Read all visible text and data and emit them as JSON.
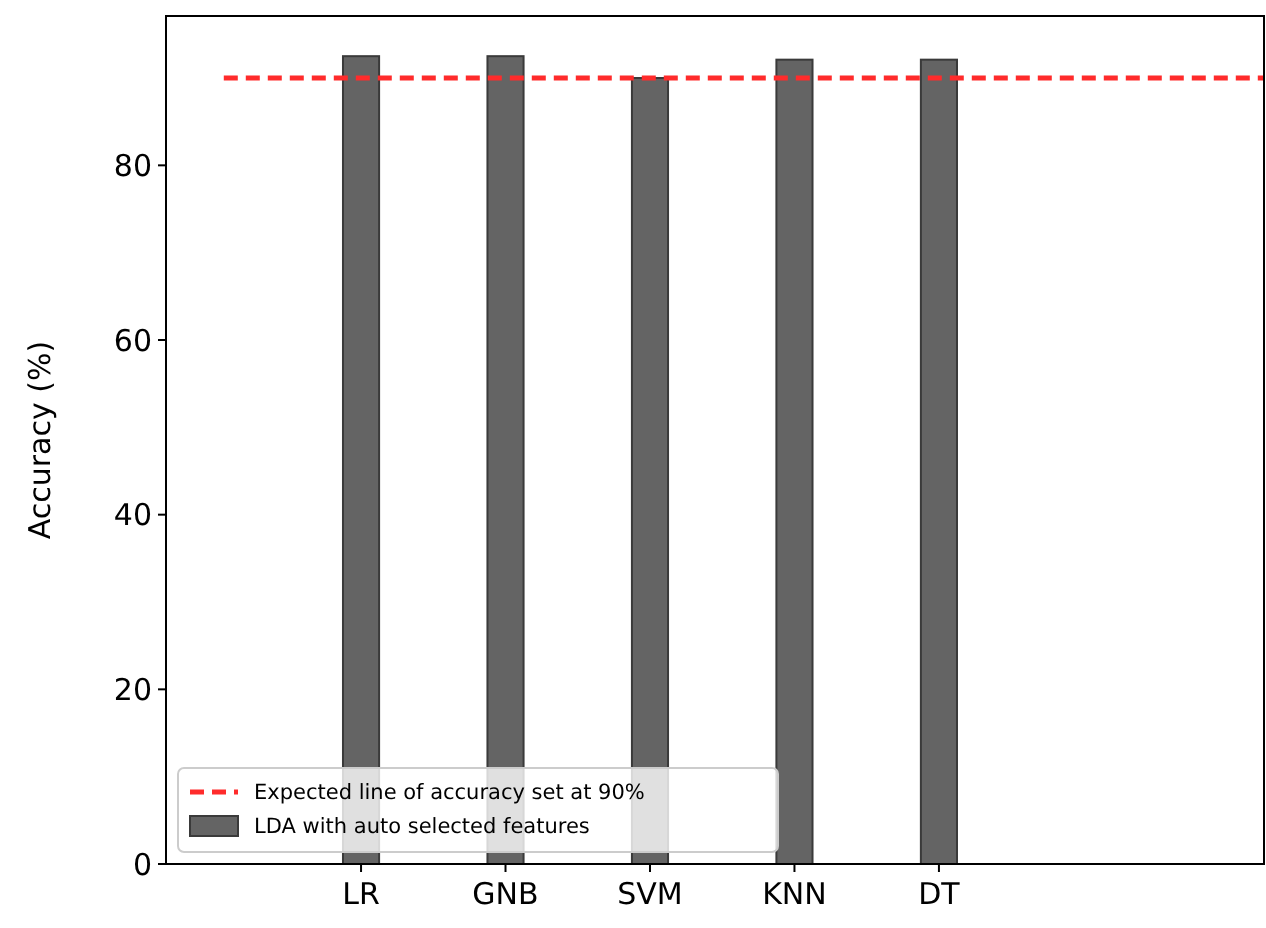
{
  "chart_data": {
    "type": "bar",
    "ylabel": "Accuracy (%)",
    "categories": [
      "LR",
      "GNB",
      "SVM",
      "KNN",
      "DT"
    ],
    "series": [
      {
        "name": "LDA with auto selected features",
        "color": "#646464",
        "values": [
          92.5,
          92.5,
          90.0,
          92.1,
          92.1
        ]
      }
    ],
    "ylim": [
      0,
      97.1
    ],
    "yticks": [
      0,
      20,
      40,
      60,
      80
    ],
    "ref_lines": [
      {
        "axis": "y",
        "value": 90,
        "label": "Expected line of accuracy set at 90%",
        "color": "#ff2b2b",
        "line_style": "dashed"
      }
    ],
    "legend": "bottom left",
    "grid": false
  }
}
